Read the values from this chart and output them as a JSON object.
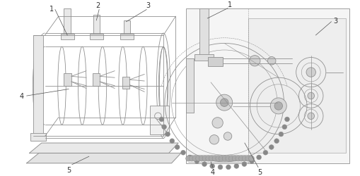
{
  "fig_width": 5.1,
  "fig_height": 2.51,
  "dpi": 100,
  "bg_color": "#ffffff",
  "lc": "#909090",
  "lcd": "#505050",
  "lg": "#cccccc",
  "label_color": "#303030",
  "label_fs": 7
}
